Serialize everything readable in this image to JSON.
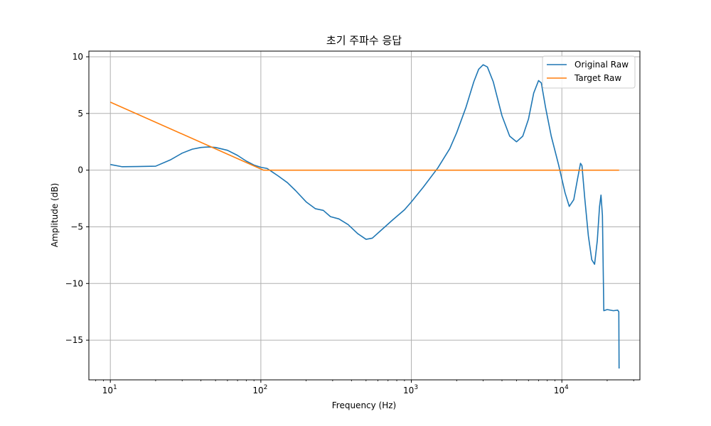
{
  "chart_data": {
    "type": "line",
    "title": "초기 주파수 응답",
    "xlabel": "Frequency (Hz)",
    "ylabel": "Amplitude (dB)",
    "xscale": "log",
    "xlim": [
      7.2,
      33000
    ],
    "ylim": [
      -18.5,
      10.5
    ],
    "grid": true,
    "legend_position": "top-right",
    "x_ticks": [
      {
        "value": 10,
        "base": "10",
        "exp": "1"
      },
      {
        "value": 100,
        "base": "10",
        "exp": "2"
      },
      {
        "value": 1000,
        "base": "10",
        "exp": "3"
      },
      {
        "value": 10000,
        "base": "10",
        "exp": "4"
      }
    ],
    "y_ticks": [
      {
        "value": 10,
        "label": "10"
      },
      {
        "value": 5,
        "label": "5"
      },
      {
        "value": 0,
        "label": "0"
      },
      {
        "value": -5,
        "label": "−5"
      },
      {
        "value": -10,
        "label": "−10"
      },
      {
        "value": -15,
        "label": "−15"
      }
    ],
    "series": [
      {
        "name": "Original Raw",
        "color": "#1f77b4",
        "points": [
          [
            10,
            0.5
          ],
          [
            12,
            0.3
          ],
          [
            15,
            0.32
          ],
          [
            20,
            0.35
          ],
          [
            25,
            0.9
          ],
          [
            30,
            1.5
          ],
          [
            35,
            1.85
          ],
          [
            40,
            2.0
          ],
          [
            45,
            2.05
          ],
          [
            50,
            2.0
          ],
          [
            60,
            1.75
          ],
          [
            70,
            1.3
          ],
          [
            80,
            0.8
          ],
          [
            90,
            0.45
          ],
          [
            100,
            0.25
          ],
          [
            110,
            0.15
          ],
          [
            130,
            -0.5
          ],
          [
            150,
            -1.1
          ],
          [
            170,
            -1.8
          ],
          [
            200,
            -2.8
          ],
          [
            230,
            -3.4
          ],
          [
            260,
            -3.55
          ],
          [
            290,
            -4.1
          ],
          [
            330,
            -4.3
          ],
          [
            380,
            -4.8
          ],
          [
            440,
            -5.6
          ],
          [
            500,
            -6.1
          ],
          [
            550,
            -6.0
          ],
          [
            630,
            -5.3
          ],
          [
            750,
            -4.4
          ],
          [
            900,
            -3.5
          ],
          [
            1000,
            -2.8
          ],
          [
            1200,
            -1.5
          ],
          [
            1500,
            0.2
          ],
          [
            1800,
            1.9
          ],
          [
            2000,
            3.3
          ],
          [
            2300,
            5.5
          ],
          [
            2600,
            7.8
          ],
          [
            2800,
            8.9
          ],
          [
            3000,
            9.3
          ],
          [
            3200,
            9.1
          ],
          [
            3500,
            7.8
          ],
          [
            4000,
            4.8
          ],
          [
            4500,
            3.0
          ],
          [
            5000,
            2.5
          ],
          [
            5500,
            3.0
          ],
          [
            6000,
            4.5
          ],
          [
            6500,
            6.8
          ],
          [
            7000,
            7.9
          ],
          [
            7300,
            7.7
          ],
          [
            7800,
            5.5
          ],
          [
            8500,
            3.0
          ],
          [
            9500,
            0.5
          ],
          [
            10500,
            -2.0
          ],
          [
            11200,
            -3.2
          ],
          [
            12000,
            -2.6
          ],
          [
            12700,
            -0.8
          ],
          [
            13300,
            0.6
          ],
          [
            13600,
            0.4
          ],
          [
            14200,
            -2.5
          ],
          [
            15000,
            -5.8
          ],
          [
            15800,
            -7.9
          ],
          [
            16500,
            -8.3
          ],
          [
            17200,
            -6.2
          ],
          [
            17800,
            -3.2
          ],
          [
            18200,
            -2.2
          ],
          [
            18600,
            -4.0
          ],
          [
            19000,
            -12.4
          ],
          [
            20000,
            -12.3
          ],
          [
            22000,
            -12.4
          ],
          [
            23500,
            -12.35
          ],
          [
            23900,
            -12.5
          ],
          [
            24000,
            -17.5
          ]
        ]
      },
      {
        "name": "Target Raw",
        "color": "#ff7f0e",
        "points": [
          [
            10,
            6.0
          ],
          [
            104,
            0.0
          ],
          [
            24000,
            0.0
          ]
        ]
      }
    ]
  }
}
